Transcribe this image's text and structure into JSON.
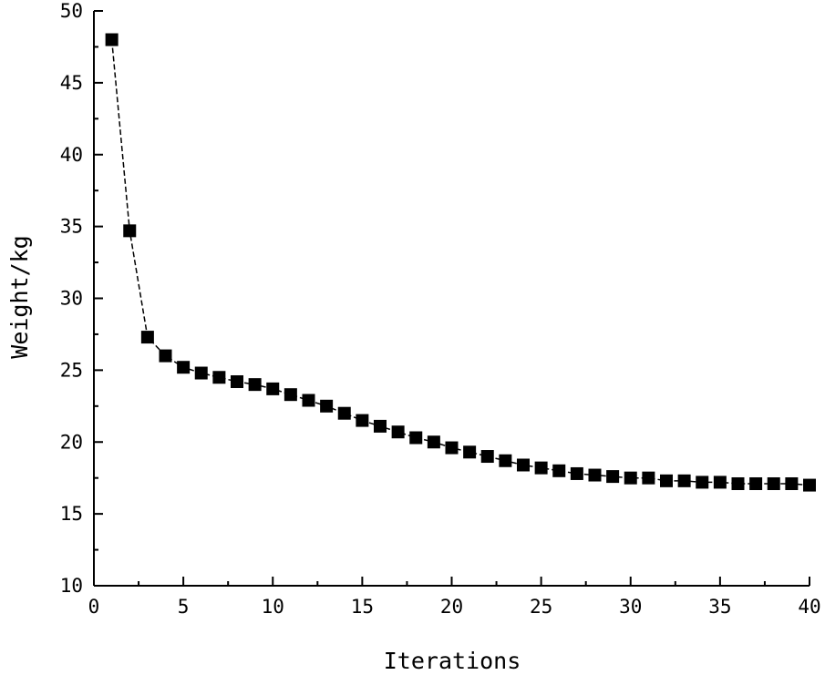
{
  "chart_data": {
    "type": "line",
    "title": "",
    "xlabel": "Iterations",
    "ylabel": "Weight/kg",
    "xlim": [
      0,
      40
    ],
    "ylim": [
      10,
      50
    ],
    "xticks": [
      "0",
      "5",
      "10",
      "15",
      "20",
      "25",
      "30",
      "35",
      "40"
    ],
    "yticks": [
      "10",
      "15",
      "20",
      "25",
      "30",
      "35",
      "40",
      "45",
      "50"
    ],
    "grid": false,
    "legend": "none",
    "marker": "square",
    "line_style": "dashed",
    "color": "#000000",
    "series": [
      {
        "x": [
          1,
          2,
          3,
          4,
          5,
          6,
          7,
          8,
          9,
          10,
          11,
          12,
          13,
          14,
          15,
          16,
          17,
          18,
          19,
          20,
          21,
          22,
          23,
          24,
          25,
          26,
          27,
          28,
          29,
          30,
          31,
          32,
          33,
          34,
          35,
          36,
          37,
          38,
          39,
          40
        ],
        "y": [
          48.0,
          34.7,
          27.3,
          26.0,
          25.2,
          24.8,
          24.5,
          24.2,
          24.0,
          23.7,
          23.3,
          22.9,
          22.5,
          22.0,
          21.5,
          21.1,
          20.7,
          20.3,
          20.0,
          19.6,
          19.3,
          19.0,
          18.7,
          18.4,
          18.2,
          18.0,
          17.8,
          17.7,
          17.6,
          17.5,
          17.5,
          17.3,
          17.3,
          17.2,
          17.2,
          17.1,
          17.1,
          17.1,
          17.1,
          17.0
        ]
      }
    ]
  }
}
